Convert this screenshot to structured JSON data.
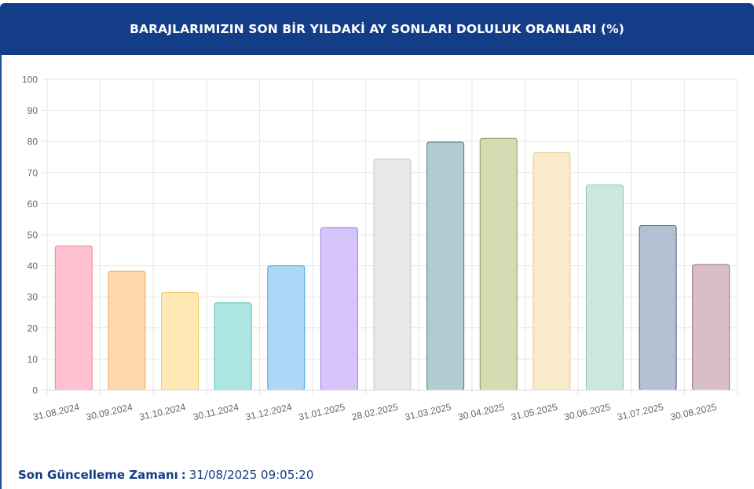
{
  "header": {
    "title": "BARAJLARIMIZIN SON BİR YILDAKİ AY SONLARI DOLULUK ORANLARI (%)"
  },
  "footer": {
    "label": "Son Güncelleme Zamanı",
    "separator": ":",
    "value": "31/08/2025 09:05:20"
  },
  "chart_data": {
    "type": "bar",
    "title": "BARAJLARIMIZIN SON BİR YILDAKİ AY SONLARI DOLULUK ORANLARI (%)",
    "xlabel": "",
    "ylabel": "",
    "ylim": [
      0,
      100
    ],
    "yticks": [
      0,
      10,
      20,
      30,
      40,
      50,
      60,
      70,
      80,
      90,
      100
    ],
    "grid": true,
    "legend": "none",
    "categories": [
      "31.08.2024",
      "30.09.2024",
      "31.10.2024",
      "30.11.2024",
      "31.12.2024",
      "31.01.2025",
      "28.02.2025",
      "31.03.2025",
      "30.04.2025",
      "31.05.2025",
      "30.06.2025",
      "31.07.2025",
      "30.08.2025"
    ],
    "values": [
      46.4,
      38.3,
      31.4,
      28.1,
      40.0,
      52.3,
      74.3,
      79.8,
      81.0,
      76.4,
      66.0,
      52.9,
      40.4
    ],
    "colors": [
      {
        "fill": "#ffc1d0",
        "stroke": "#ef84a0"
      },
      {
        "fill": "#ffd8ad",
        "stroke": "#f0a65c"
      },
      {
        "fill": "#ffe8b3",
        "stroke": "#f0c85a"
      },
      {
        "fill": "#aee6e4",
        "stroke": "#5cc0bd"
      },
      {
        "fill": "#acd7f7",
        "stroke": "#4c9fdc"
      },
      {
        "fill": "#d6c5fb",
        "stroke": "#9e7ef0"
      },
      {
        "fill": "#e8e8ea",
        "stroke": "#c9c9cd"
      },
      {
        "fill": "#b0ccd0",
        "stroke": "#52787f"
      },
      {
        "fill": "#d5dcb4",
        "stroke": "#8f9a55"
      },
      {
        "fill": "#f8eaca",
        "stroke": "#e6cd8c"
      },
      {
        "fill": "#cce7df",
        "stroke": "#8ccbb8"
      },
      {
        "fill": "#b3c0d1",
        "stroke": "#3f5878"
      },
      {
        "fill": "#d8bfc7",
        "stroke": "#9b6e7c"
      }
    ]
  }
}
